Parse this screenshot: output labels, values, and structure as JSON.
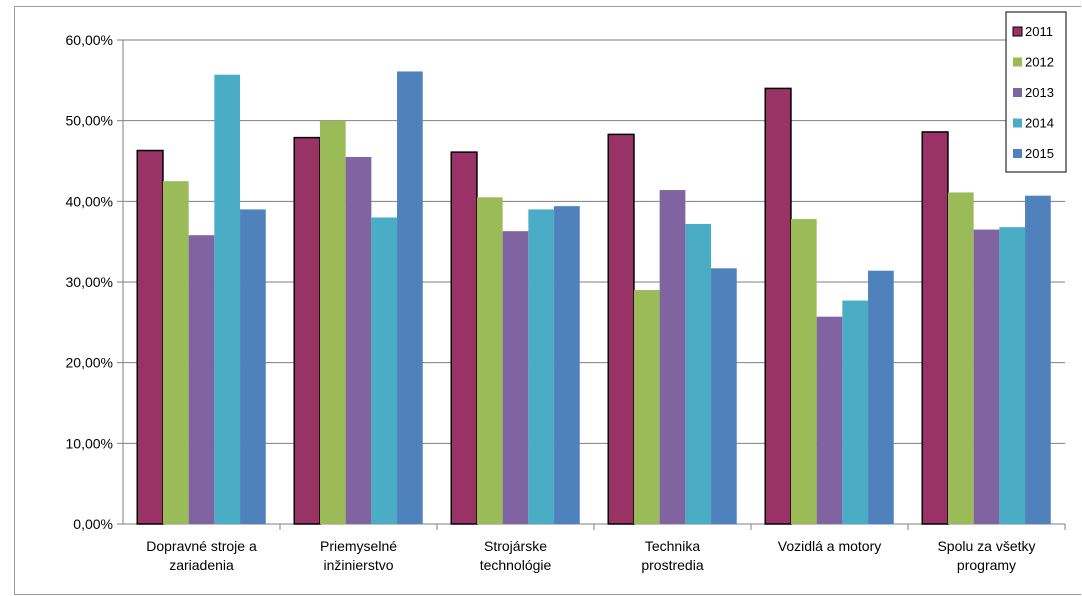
{
  "chart_data": {
    "type": "bar",
    "categories": [
      [
        "Dopravné stroje a",
        "zariadenia"
      ],
      [
        "Priemyselné",
        "inžinierstvo"
      ],
      [
        "Strojárske",
        "technológie"
      ],
      [
        "Technika",
        "prostredia"
      ],
      [
        "Vozidlá a motory"
      ],
      [
        "Spolu za všetky",
        "programy"
      ]
    ],
    "series": [
      {
        "name": "2011",
        "color": "#993366",
        "values": [
          46.3,
          47.9,
          46.1,
          48.3,
          54.0,
          48.6
        ]
      },
      {
        "name": "2012",
        "color": "#9BBB59",
        "values": [
          42.5,
          50.0,
          40.5,
          29.0,
          37.8,
          41.1
        ]
      },
      {
        "name": "2013",
        "color": "#8064A2",
        "values": [
          35.8,
          45.5,
          36.3,
          41.4,
          25.7,
          36.5
        ]
      },
      {
        "name": "2014",
        "color": "#4BACC6",
        "values": [
          55.7,
          38.0,
          39.0,
          37.2,
          27.7,
          36.8
        ]
      },
      {
        "name": "2015",
        "color": "#4F81BD",
        "values": [
          39.0,
          56.1,
          39.4,
          31.7,
          31.4,
          40.7
        ]
      }
    ],
    "y_ticks": [
      "0,00%",
      "10,00%",
      "20,00%",
      "30,00%",
      "40,00%",
      "50,00%",
      "60,00%"
    ],
    "ylim": [
      0,
      60
    ],
    "grid": true,
    "legend_position": "top-right"
  }
}
